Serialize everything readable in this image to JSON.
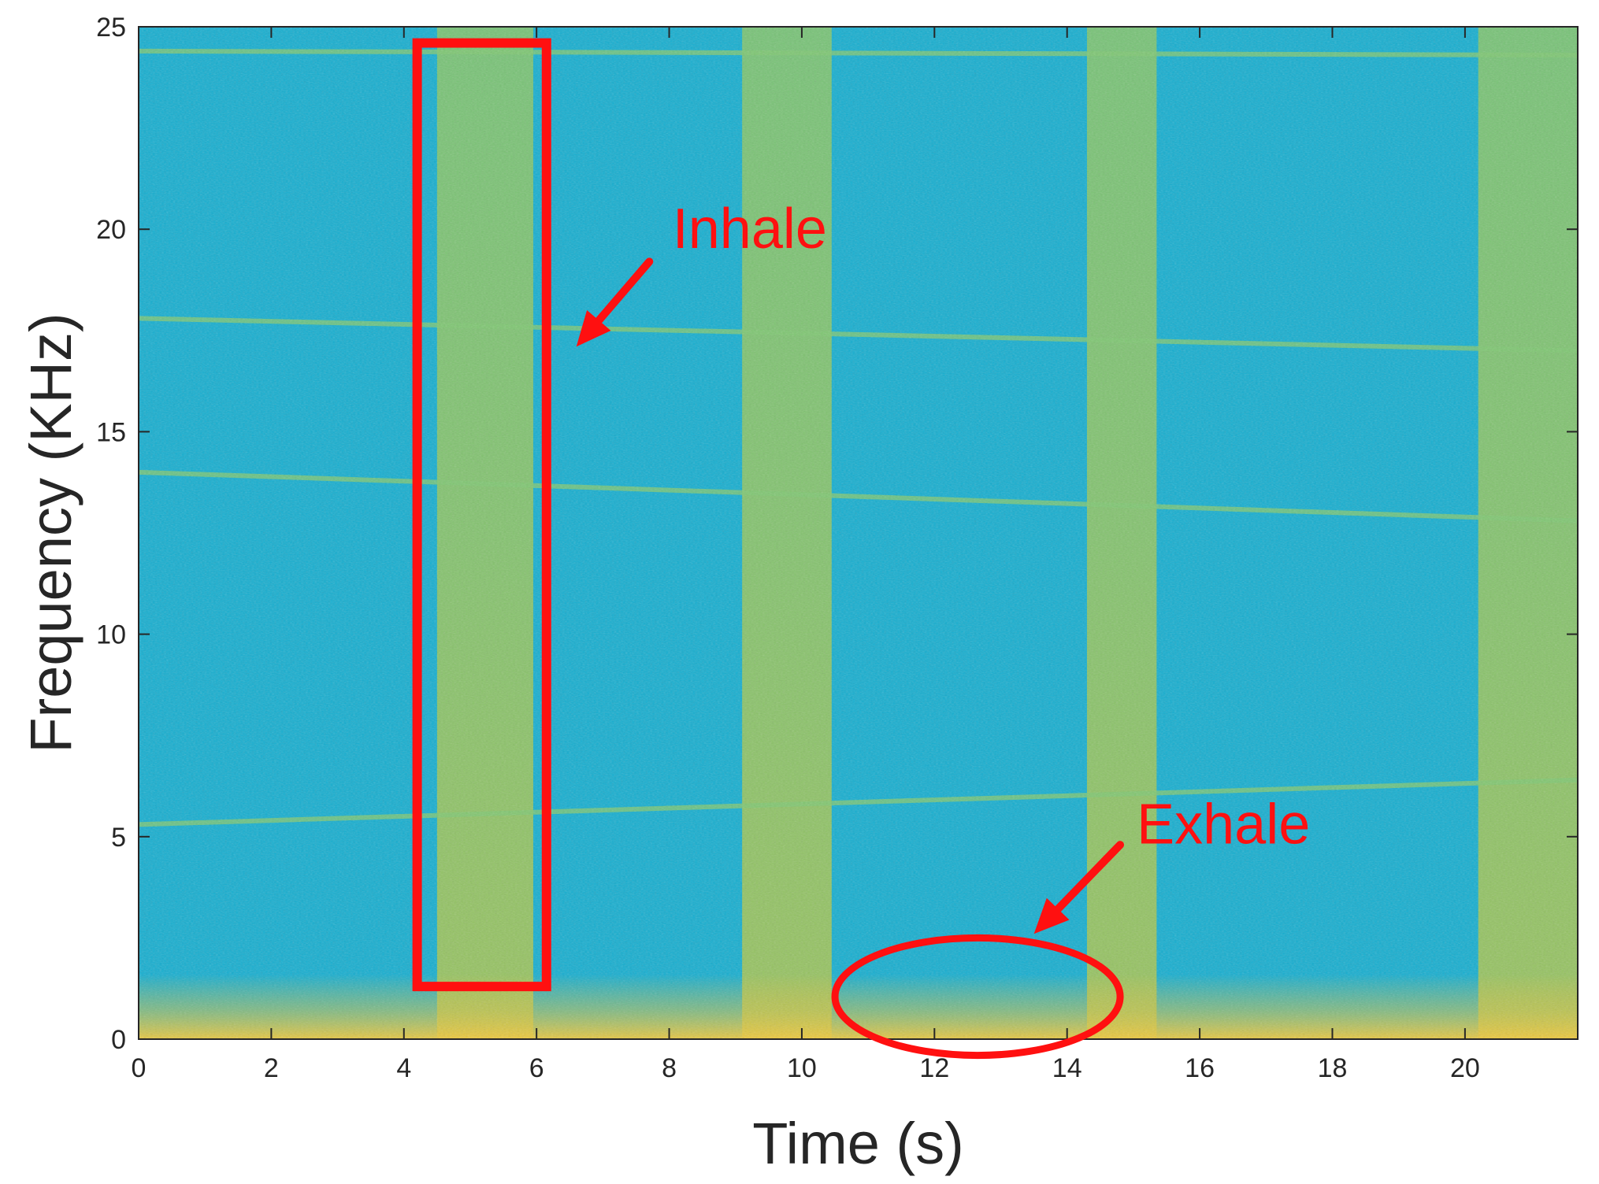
{
  "chart_data": {
    "type": "heatmap",
    "title": "",
    "xlabel": "Time (s)",
    "ylabel": "Frequency (KHz)",
    "xlim": [
      0,
      21.7
    ],
    "ylim": [
      0,
      25
    ],
    "xticks": [
      0,
      2,
      4,
      6,
      8,
      10,
      12,
      14,
      16,
      18,
      20
    ],
    "yticks": [
      0,
      5,
      10,
      15,
      20,
      25
    ],
    "colormap": "parula",
    "colors": {
      "background": "#14aed0",
      "breath_band": "#8cc862",
      "low_freq_energy": "#e9c23a",
      "harmonic_line": "#7ec872",
      "annotation": "#ff1010",
      "axis": "#262626"
    },
    "breath_bands": [
      {
        "x": [
          4.5,
          5.95
        ]
      },
      {
        "x": [
          9.1,
          10.45
        ]
      },
      {
        "x": [
          14.3,
          15.35
        ]
      },
      {
        "x": [
          20.2,
          21.7
        ]
      }
    ],
    "harmonic_lines": [
      {
        "x": [
          0,
          21.7
        ],
        "y": [
          5.3,
          6.4
        ]
      },
      {
        "x": [
          0,
          21.7
        ],
        "y": [
          14.0,
          12.8
        ]
      },
      {
        "x": [
          0,
          21.7
        ],
        "y": [
          17.8,
          17.0
        ]
      },
      {
        "x": [
          0,
          21.7
        ],
        "y": [
          24.4,
          24.3
        ]
      }
    ],
    "annotations": [
      {
        "label": "Inhale",
        "shape": "rectangle",
        "x": [
          4.2,
          6.15
        ],
        "y": [
          1.3,
          24.6
        ],
        "text_at": [
          8.05,
          20.0
        ],
        "arrow_from": [
          7.7,
          19.2
        ],
        "arrow_to": [
          6.6,
          17.1
        ]
      },
      {
        "label": "Exhale",
        "shape": "ellipse",
        "center": [
          12.65,
          1.05
        ],
        "radius": [
          2.15,
          1.45
        ],
        "text_at": [
          15.05,
          5.3
        ],
        "arrow_from": [
          14.8,
          4.8
        ],
        "arrow_to": [
          13.5,
          2.6
        ]
      }
    ]
  }
}
